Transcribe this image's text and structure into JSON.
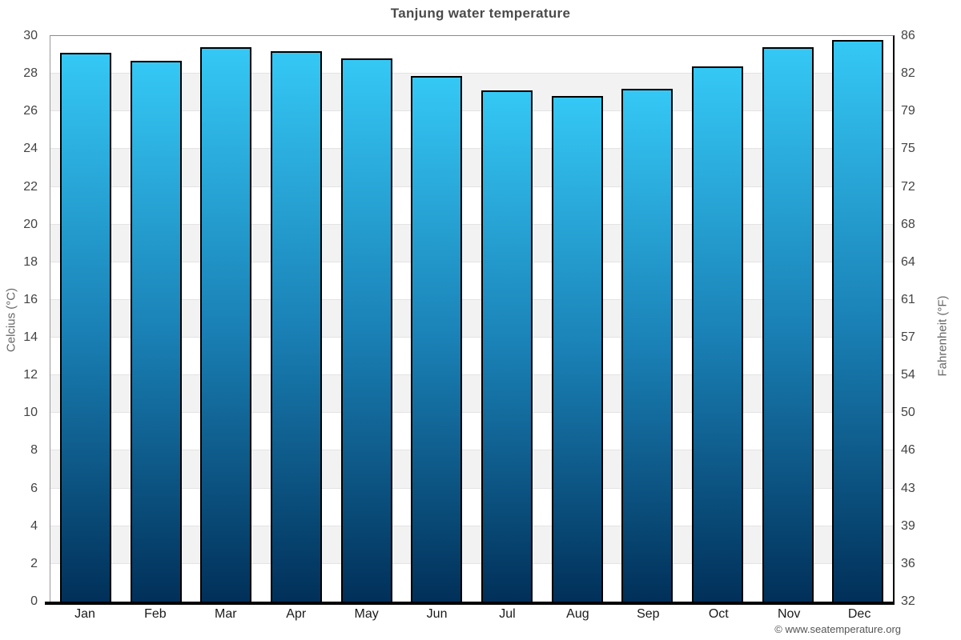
{
  "page": {
    "title": "Tanjung water temperature",
    "footer_copyright": "© www.seatemperature.org"
  },
  "chart_data": {
    "type": "bar",
    "title": "Tanjung water temperature",
    "categories": [
      "Jan",
      "Feb",
      "Mar",
      "Apr",
      "May",
      "Jun",
      "Jul",
      "Aug",
      "Sep",
      "Oct",
      "Nov",
      "Dec"
    ],
    "values": [
      29.1,
      28.7,
      29.4,
      29.2,
      28.8,
      27.9,
      27.1,
      26.8,
      27.2,
      28.4,
      29.4,
      29.8
    ],
    "unit": "°C",
    "ylabel_left": "Celcius (°C)",
    "ylabel_right": "Fahrenheit (°F)",
    "ylim_celsius": [
      0,
      30
    ],
    "celsius_ticks_top_to_bottom": [
      30,
      28,
      26,
      24,
      22,
      20,
      18,
      16,
      14,
      12,
      10,
      8,
      6,
      4,
      2,
      0
    ],
    "fahrenheit_ticks_top_to_bottom": [
      86,
      82,
      79,
      75,
      72,
      68,
      64,
      61,
      57,
      54,
      50,
      46,
      43,
      39,
      36,
      32
    ],
    "legend": "none",
    "grid": "alternating horizontal bands every 2°C, white and light gray, thin gridlines at band edges",
    "colors": {
      "bar_gradient_top": "#35c8f5",
      "bar_gradient_mid": "#1a81b6",
      "bar_gradient_bottom": "#013059",
      "bar_border": "#000000",
      "band_white": "#ffffff",
      "band_gray": "#f2f2f2",
      "gridline": "#e3e3e3",
      "title_text": "#4a4a4a",
      "tick_text": "#444444"
    }
  }
}
